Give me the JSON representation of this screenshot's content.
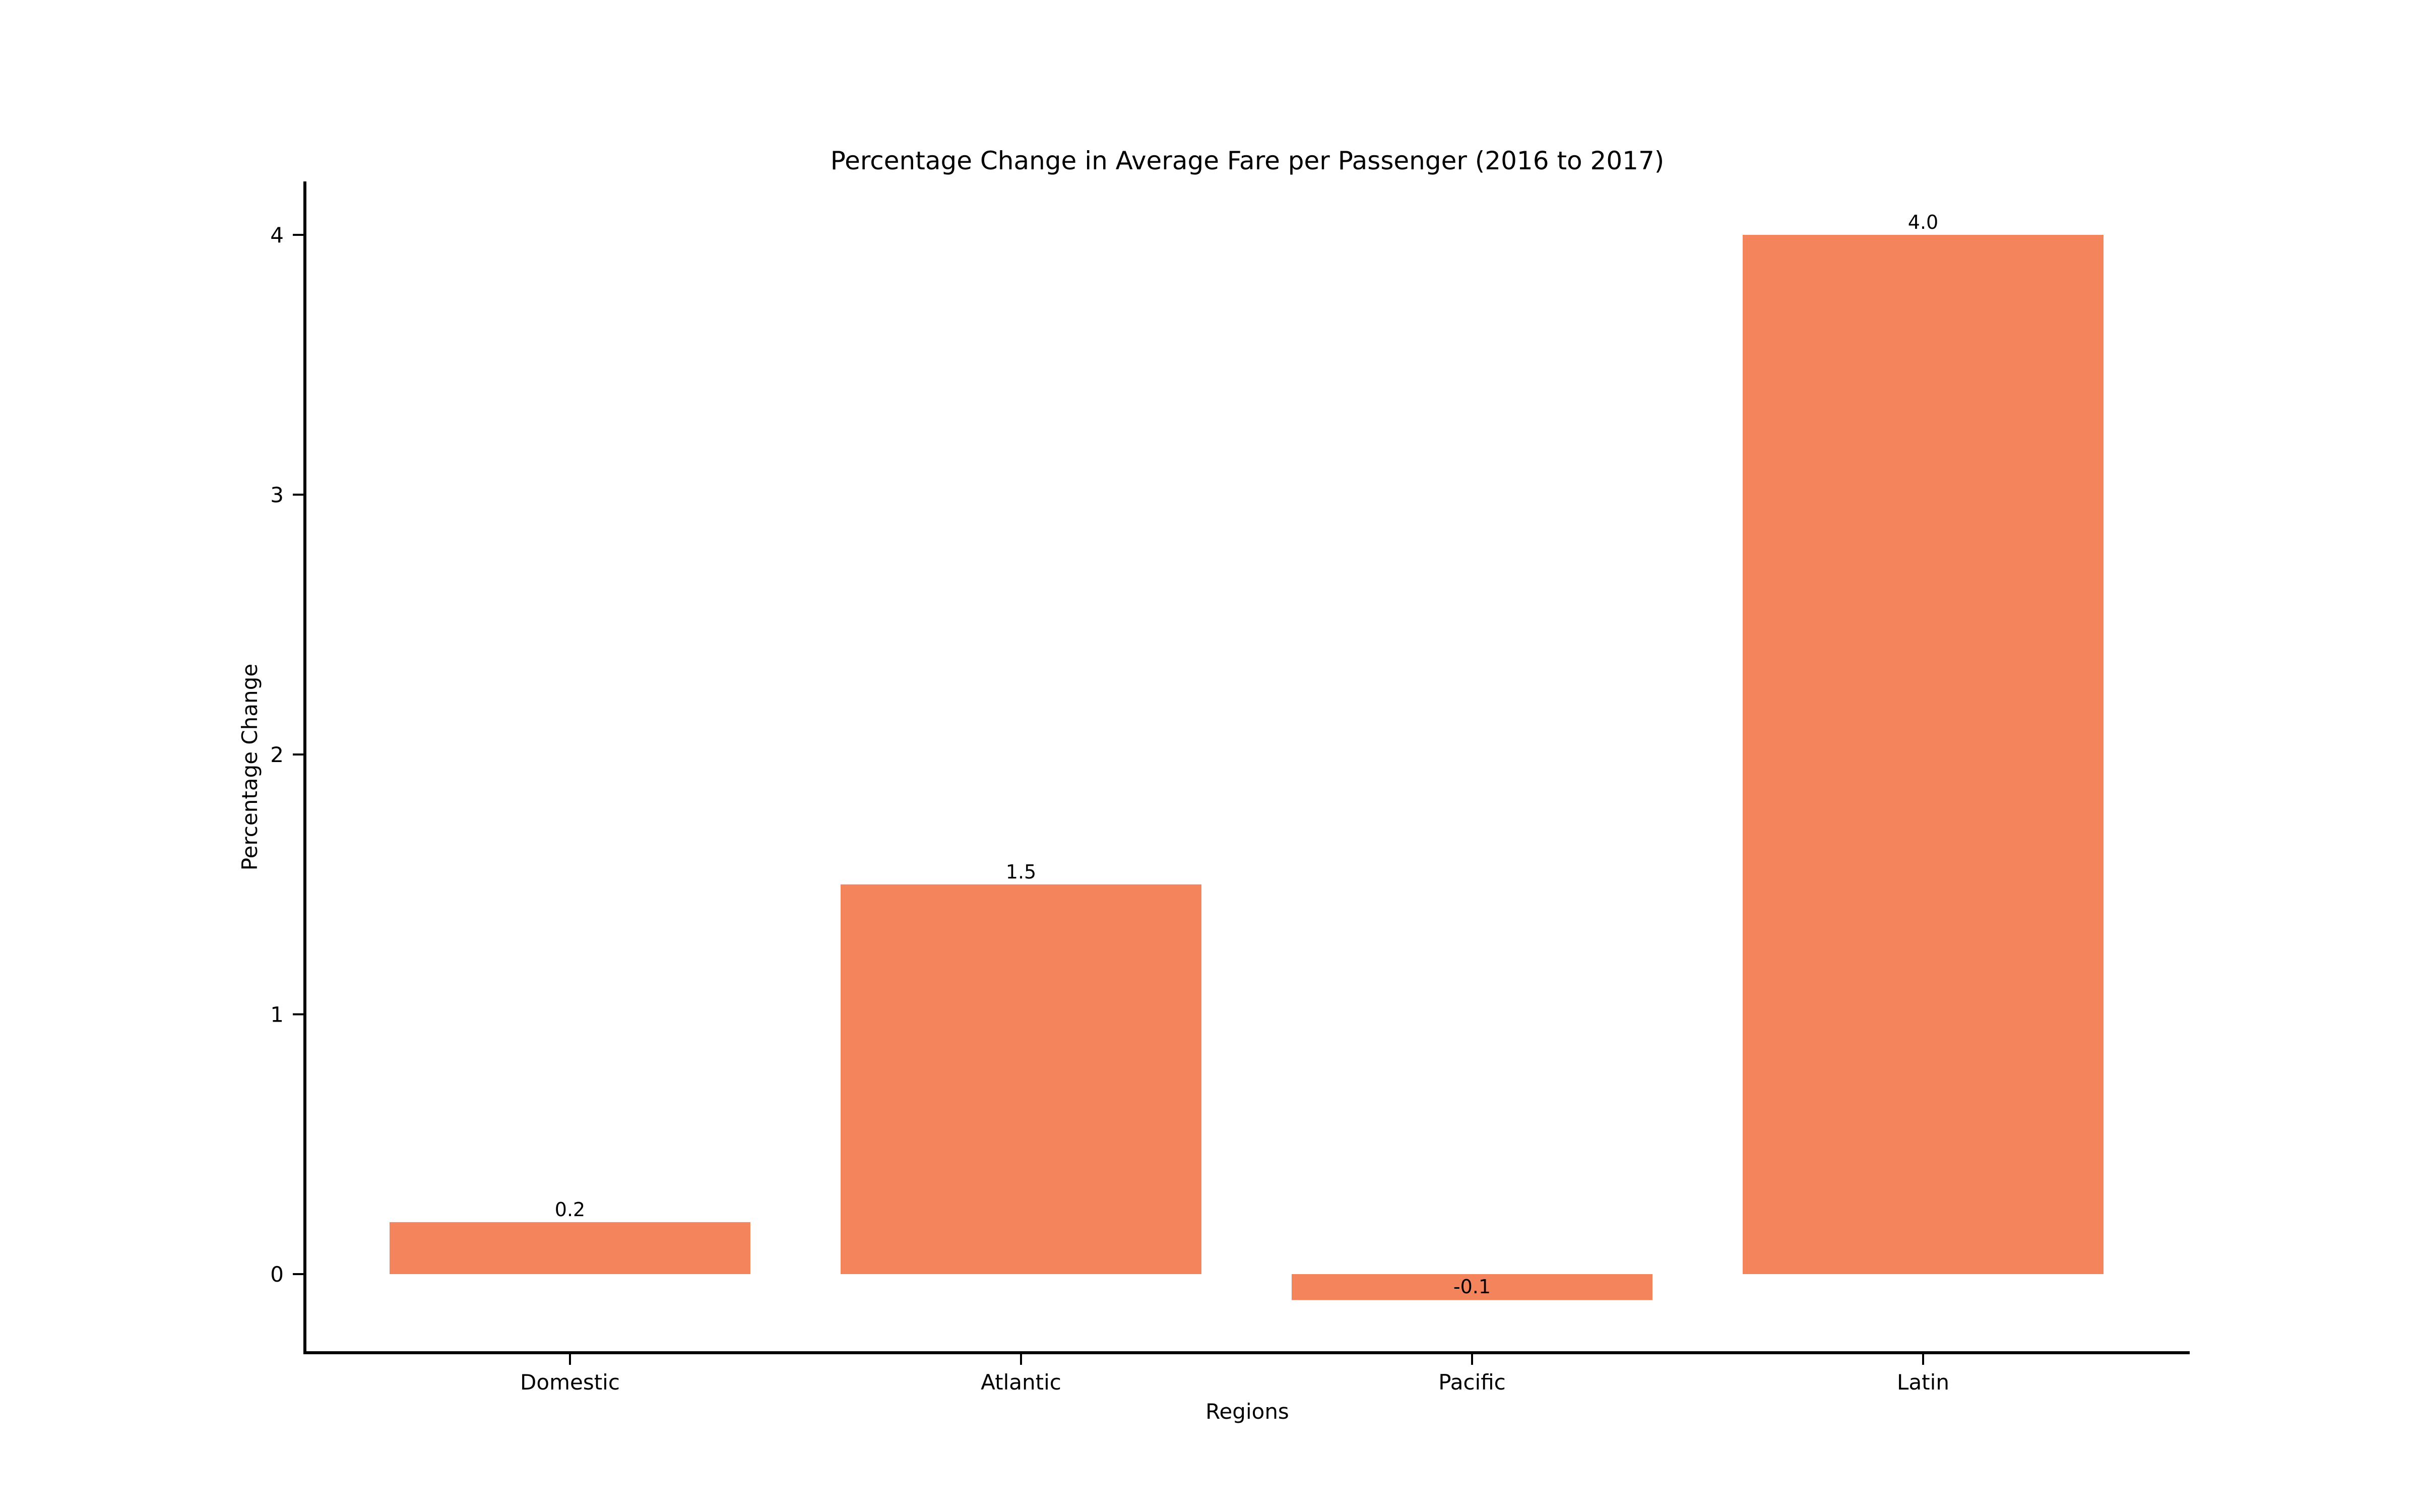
{
  "chart_data": {
    "type": "bar",
    "title": "Percentage Change in Average Fare per Passenger (2016 to 2017)",
    "xlabel": "Regions",
    "ylabel": "Percentage Change",
    "categories": [
      "Domestic",
      "Atlantic",
      "Pacific",
      "Latin"
    ],
    "values": [
      0.2,
      1.5,
      -0.1,
      4.0
    ],
    "data_labels": [
      "0.2",
      "1.5",
      "-0.1",
      "4.0"
    ],
    "yticks": [
      0,
      1,
      2,
      3,
      4
    ],
    "ylim": [
      -0.3,
      4.2
    ],
    "grid": false,
    "legend": "none",
    "bar_color": "#f4845c"
  }
}
